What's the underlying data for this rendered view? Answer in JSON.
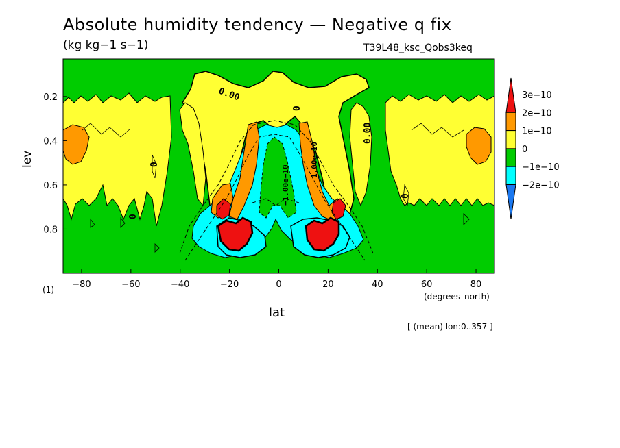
{
  "chart_data": {
    "type": "heatmap",
    "title": "Absolute humidity tendency — Negative q fix",
    "subtitle": "(kg kg−1 s−1)",
    "run_name": "T39L48_ksc_Qobs3keq",
    "xlabel": "lat",
    "x_units": "(degrees_north)",
    "ylabel": "lev",
    "panel_number": "(1)",
    "mean_info": "[ (mean) lon:0..357 ]",
    "xlim": [
      -87.5,
      87.5
    ],
    "ylim": [
      1.0,
      0.03
    ],
    "x_ticks": [
      -80,
      -60,
      -40,
      -20,
      0,
      20,
      40,
      60,
      80
    ],
    "x_tick_labels": [
      "−80",
      "−60",
      "−40",
      "−20",
      "0",
      "20",
      "40",
      "60",
      "80"
    ],
    "y_ticks": [
      0.2,
      0.4,
      0.6,
      0.8
    ],
    "y_tick_labels": [
      "0.2",
      "0.4",
      "0.6",
      "0.8"
    ],
    "colorbar": {
      "levels": [
        -2e-10,
        -1e-10,
        0,
        1e-10,
        2e-10,
        3e-10
      ],
      "labels": [
        "−2e−10",
        "−1e−10",
        "0",
        "1e−10",
        "2e−10",
        "3e−10"
      ],
      "colors": [
        "#1a78f0",
        "#00ffff",
        "#00cc00",
        "#ffff33",
        "#ff9900",
        "#ee1111"
      ],
      "extend": "both"
    },
    "contour_labels": [
      "0.00",
      "0.00",
      "0",
      "0",
      "0",
      "0",
      "−1.00e−10",
      "1.00e−10"
    ],
    "regions": [
      {
        "value": 5e-11,
        "name": "green-north-band"
      },
      {
        "value": 5e-11,
        "name": "green-south-band"
      },
      {
        "value": 5e-11,
        "name": "green-upper-arch"
      },
      {
        "value": 1.5e-10,
        "name": "yellow-patches"
      },
      {
        "value": -1.5e-10,
        "name": "blue-tropical-lower"
      },
      {
        "value": 3.5e-10,
        "name": "red-maxima"
      }
    ]
  }
}
